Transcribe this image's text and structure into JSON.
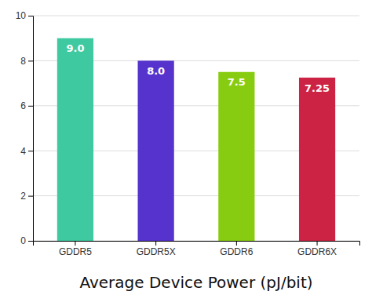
{
  "chart_data": {
    "type": "bar",
    "categories": [
      "GDDR5",
      "GDDR5X",
      "GDDR6",
      "GDDR6X"
    ],
    "values": [
      9.0,
      8.0,
      7.5,
      7.25
    ],
    "value_labels": [
      "9.0",
      "8.0",
      "7.5",
      "7.25"
    ],
    "colors": [
      "#3ec9a0",
      "#5533cc",
      "#88cc11",
      "#cc2244"
    ],
    "xlabel": "Average Device Power (pJ/bit)",
    "ylim": [
      0,
      10
    ],
    "yticks": [
      0,
      2,
      4,
      6,
      8,
      10
    ],
    "grid": true,
    "data_labels": true
  }
}
